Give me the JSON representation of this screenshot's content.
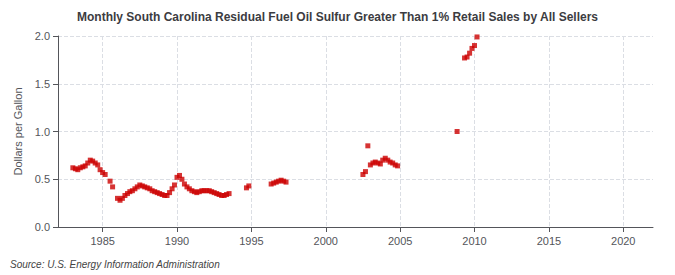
{
  "chart_data": {
    "type": "scatter",
    "title": "Monthly South Carolina Residual Fuel Oil Sulfur Greater Than 1% Retail Sales by All Sellers",
    "ylabel": "Dollars per Gallon",
    "source": "Source: U.S. Energy Information Administration",
    "color": "#cc0000",
    "marker": "square",
    "grid": true,
    "xlim": [
      1982,
      2022
    ],
    "ylim": [
      0.0,
      2.0
    ],
    "xticks": [
      1985,
      1990,
      1995,
      2000,
      2005,
      2010,
      2015,
      2020
    ],
    "yticks": [
      {
        "value": 0.0,
        "label": "0.0"
      },
      0.5,
      {
        "value": 1.0,
        "label": "1.0"
      },
      1.5,
      {
        "value": 2.0,
        "label": "2.0"
      }
    ],
    "x": [
      1983.0,
      1983.17,
      1983.33,
      1983.5,
      1983.67,
      1983.83,
      1984.0,
      1984.17,
      1984.33,
      1984.5,
      1984.67,
      1984.83,
      1985.0,
      1985.17,
      1985.5,
      1985.67,
      1986.0,
      1986.17,
      1986.33,
      1986.5,
      1986.67,
      1986.83,
      1987.0,
      1987.17,
      1987.33,
      1987.5,
      1987.67,
      1987.83,
      1988.0,
      1988.17,
      1988.33,
      1988.5,
      1988.67,
      1988.83,
      1989.0,
      1989.17,
      1989.33,
      1989.5,
      1989.67,
      1989.83,
      1990.0,
      1990.17,
      1990.33,
      1990.5,
      1990.67,
      1990.83,
      1991.0,
      1991.17,
      1991.33,
      1991.5,
      1991.67,
      1991.83,
      1992.0,
      1992.17,
      1992.33,
      1992.5,
      1992.67,
      1992.83,
      1993.0,
      1993.17,
      1993.33,
      1993.5,
      1994.67,
      1994.83,
      1996.33,
      1996.5,
      1996.67,
      1996.83,
      1997.0,
      1997.17,
      1997.33,
      2002.5,
      2002.67,
      2002.83,
      2003.0,
      2003.17,
      2003.33,
      2003.5,
      2003.67,
      2003.83,
      2004.0,
      2004.17,
      2004.33,
      2004.5,
      2004.67,
      2004.83,
      2008.83,
      2009.33,
      2009.5,
      2009.67,
      2009.83,
      2010.0,
      2010.17
    ],
    "values": [
      0.62,
      0.61,
      0.6,
      0.62,
      0.63,
      0.64,
      0.67,
      0.7,
      0.69,
      0.67,
      0.65,
      0.6,
      0.57,
      0.55,
      0.48,
      0.42,
      0.3,
      0.28,
      0.3,
      0.33,
      0.35,
      0.37,
      0.38,
      0.4,
      0.42,
      0.44,
      0.43,
      0.42,
      0.41,
      0.4,
      0.38,
      0.37,
      0.36,
      0.35,
      0.34,
      0.33,
      0.33,
      0.36,
      0.4,
      0.44,
      0.52,
      0.54,
      0.5,
      0.45,
      0.42,
      0.4,
      0.38,
      0.37,
      0.36,
      0.37,
      0.38,
      0.38,
      0.38,
      0.38,
      0.37,
      0.36,
      0.35,
      0.34,
      0.33,
      0.33,
      0.34,
      0.35,
      0.41,
      0.43,
      0.45,
      0.46,
      0.47,
      0.48,
      0.49,
      0.48,
      0.47,
      0.55,
      0.58,
      0.85,
      0.65,
      0.67,
      0.68,
      0.67,
      0.66,
      0.7,
      0.72,
      0.7,
      0.68,
      0.67,
      0.65,
      0.64,
      1.0,
      1.77,
      1.78,
      1.82,
      1.87,
      1.9,
      1.99
    ]
  }
}
